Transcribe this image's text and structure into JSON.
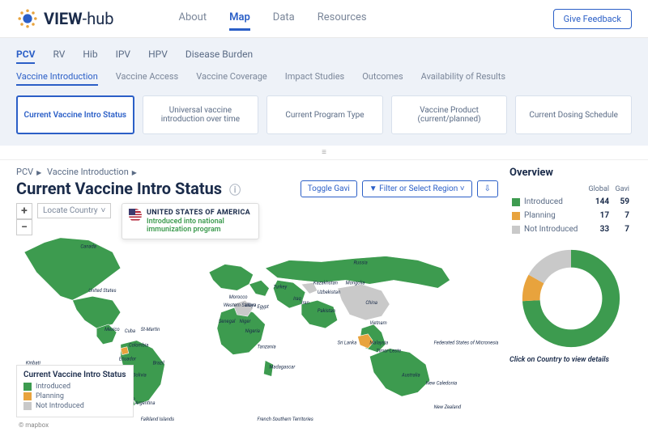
{
  "brand": {
    "name": "VIEW",
    "suffix": "-hub"
  },
  "nav": {
    "items": [
      "About",
      "Map",
      "Data",
      "Resources"
    ],
    "active": 1,
    "feedback": "Give Feedback"
  },
  "tabs1": {
    "items": [
      "PCV",
      "RV",
      "Hib",
      "IPV",
      "HPV",
      "Disease Burden"
    ],
    "active": 0
  },
  "tabs2": {
    "items": [
      "Vaccine Introduction",
      "Vaccine Access",
      "Vaccine Coverage",
      "Impact Studies",
      "Outcomes",
      "Availability of Results"
    ],
    "active": 0
  },
  "cards": {
    "items": [
      "Current Vaccine Intro Status",
      "Universal vaccine introduction over time",
      "Current Program Type",
      "Vaccine Product (current/planned)",
      "Current Dosing Schedule"
    ],
    "active": 0
  },
  "breadcrumb": {
    "a": "PCV",
    "b": "Vaccine Introduction"
  },
  "title": "Current Vaccine Intro Status",
  "controls": {
    "toggle": "Toggle Gavi",
    "filter": "Filter or Select Region"
  },
  "locate": {
    "label": "Locate Country"
  },
  "tooltip": {
    "country": "UNITED STATES OF AMERICA",
    "status": "Introduced into national immunization program"
  },
  "legend": {
    "title": "Current Vaccine Intro Status",
    "items": [
      {
        "label": "Introduced",
        "color": "#3d9b4f"
      },
      {
        "label": "Planning",
        "color": "#e8a33d"
      },
      {
        "label": "Not Introduced",
        "color": "#c9c9c9"
      }
    ]
  },
  "overview": {
    "title": "Overview",
    "cols": [
      "Global",
      "Gavi"
    ],
    "rows": [
      {
        "label": "Introduced",
        "color": "#3d9b4f",
        "global": "144",
        "gavi": "59"
      },
      {
        "label": "Planning",
        "color": "#e8a33d",
        "global": "17",
        "gavi": "7"
      },
      {
        "label": "Not Introduced",
        "color": "#c9c9c9",
        "global": "33",
        "gavi": "7"
      }
    ],
    "donut": {
      "segments": [
        {
          "color": "#3d9b4f",
          "pct": 74
        },
        {
          "color": "#e8a33d",
          "pct": 9
        },
        {
          "color": "#c9c9c9",
          "pct": 17
        }
      ]
    },
    "cta": "Click on Country to view details"
  },
  "maplabels": [
    "Canada",
    "United States",
    "Mexico",
    "Cuba",
    "St-Martin",
    "Colombia",
    "Ecuador",
    "Peru",
    "Bolivia",
    "Brazil",
    "Chile",
    "Argentina",
    "Falkland Islands",
    "Kiribati",
    "Russia",
    "China",
    "Mongolia",
    "Kazakhstan",
    "Uzbekistan",
    "Pakistan",
    "Iran",
    "Iraq",
    "Turkey",
    "Egypt",
    "Libya",
    "Niger",
    "Nigeria",
    "Senegal",
    "Western Sahara",
    "Morocco",
    "Tanzania",
    "Madagascar",
    "Australia",
    "New Zealand",
    "New Caledonia",
    "Timor-Leste",
    "Vietnam",
    "Malaysia",
    "Sri Lanka",
    "Federated States of Micronesia",
    "French Southern Territories"
  ],
  "attribution": "© mapbox"
}
